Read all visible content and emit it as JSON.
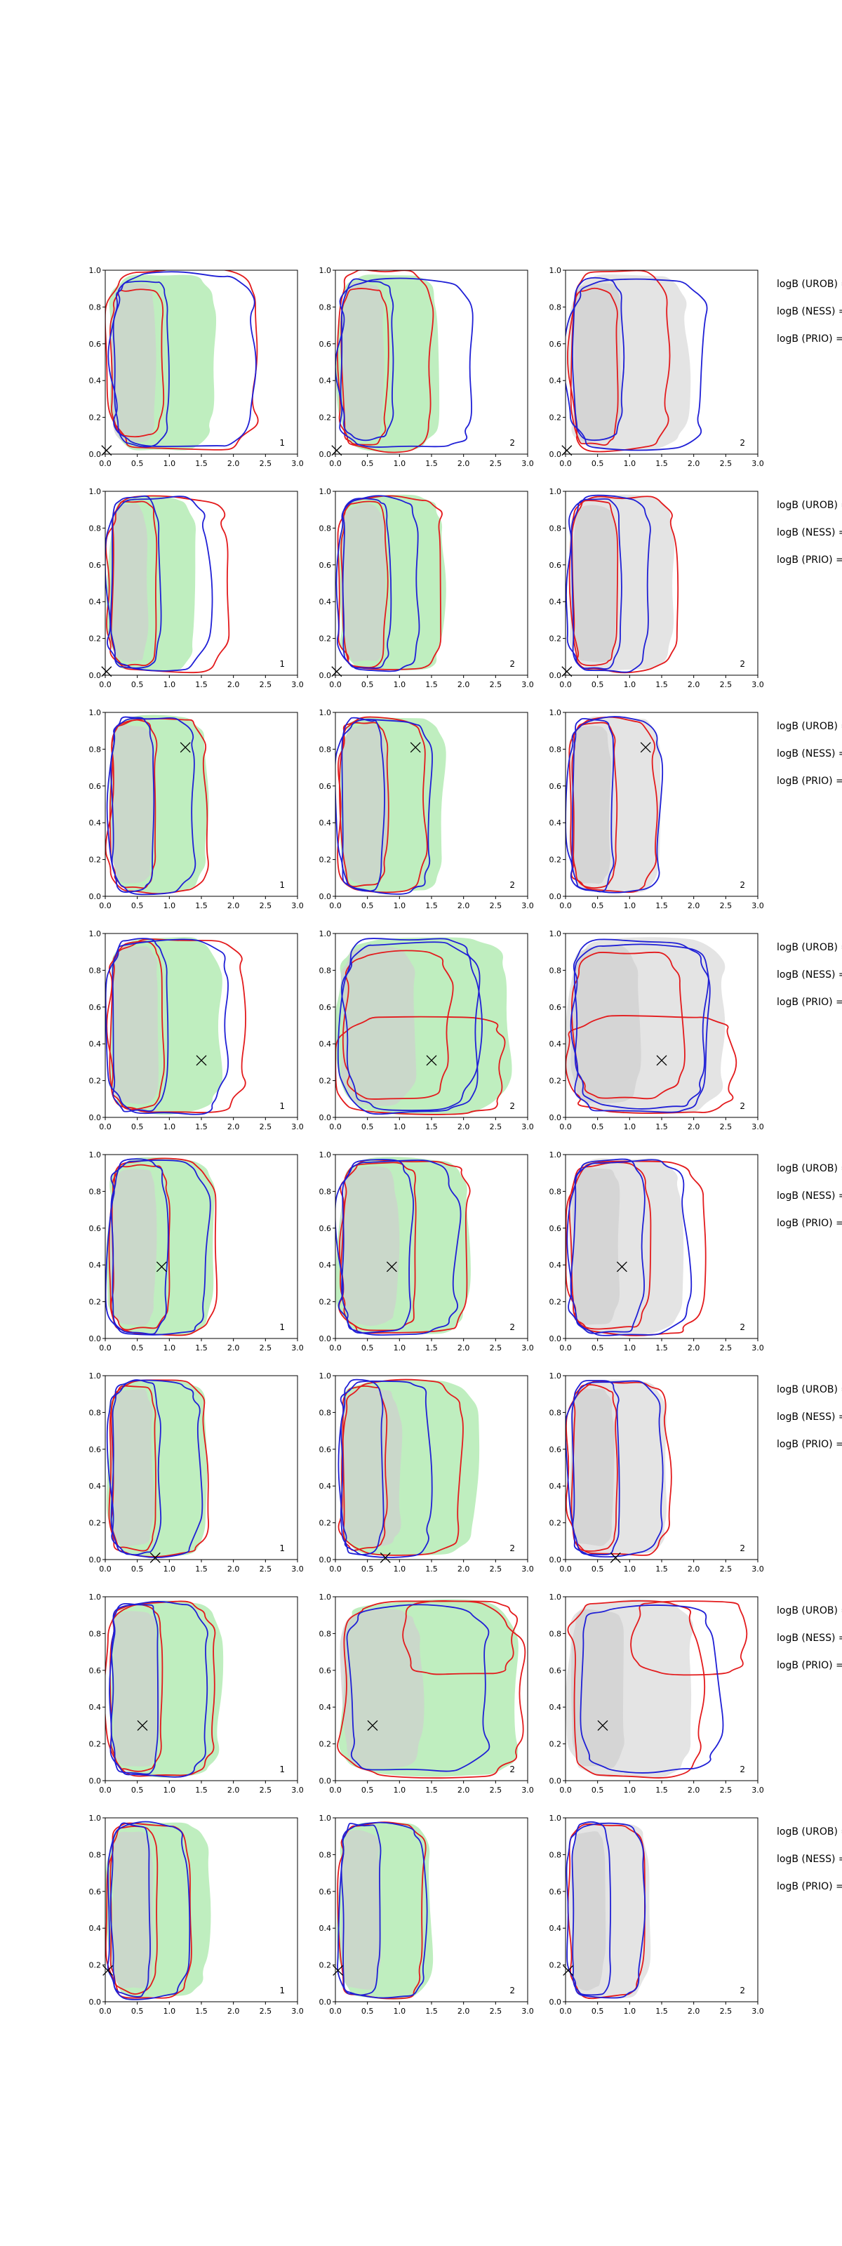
{
  "chart_data": {
    "type": "contour",
    "layout": "8 rows x 3 columns of small-multiple density contour plots",
    "grid": false,
    "shared_axes": {
      "xlim": [
        0,
        3
      ],
      "ylim": [
        0,
        1
      ],
      "x_ticks": [
        "0.0",
        "0.5",
        "1.0",
        "1.5",
        "2.0",
        "2.5",
        "3.0"
      ],
      "y_ticks": [
        "0.0",
        "0.2",
        "0.4",
        "0.6",
        "0.8",
        "1.0"
      ]
    },
    "colors": {
      "green_fill": "#bfeebf",
      "grey_fill": "#e4e4e4",
      "grey_inner": "#cfcfcf",
      "red_line": "#e31a1c",
      "blue_line": "#1f1fd6",
      "marker": "#000000"
    },
    "panel_numbers": [
      "1",
      "2",
      "2"
    ],
    "row_labels": [
      "logB (UROB) =",
      "logB (NESS) =",
      "logB (PRIO) ="
    ],
    "rows": [
      {
        "marker": [
          0.02,
          0.02
        ],
        "panels": [
          {
            "fill": "green",
            "blob": [
              0.05,
              0.02,
              1.7,
              0.98
            ],
            "red": [
              [
                0.1,
                0.1,
                0.9,
                0.9
              ],
              [
                0.05,
                0.02,
                2.4,
                1.0
              ]
            ],
            "blue": [
              [
                0.15,
                0.05,
                1.0,
                0.95
              ],
              [
                0.1,
                0.03,
                2.3,
                0.98
              ]
            ]
          },
          {
            "fill": "green",
            "blob": [
              0.05,
              0.02,
              1.6,
              0.98
            ],
            "red": [
              [
                0.1,
                0.05,
                0.8,
                0.9
              ],
              [
                0.05,
                0.02,
                1.5,
                1.0
              ]
            ],
            "blue": [
              [
                0.1,
                0.08,
                0.9,
                0.95
              ],
              [
                0.05,
                0.03,
                2.2,
                0.95
              ]
            ]
          },
          {
            "fill": "grey",
            "blob": [
              0.05,
              0.02,
              1.9,
              0.98
            ],
            "red": [
              [
                0.1,
                0.05,
                0.8,
                0.9
              ],
              [
                0.05,
                0.02,
                1.6,
                1.0
              ]
            ],
            "blue": [
              [
                0.1,
                0.08,
                0.9,
                0.95
              ],
              [
                0.05,
                0.03,
                2.2,
                0.95
              ]
            ]
          }
        ]
      },
      {
        "marker": [
          0.02,
          0.02
        ],
        "panels": [
          {
            "fill": "green",
            "blob": [
              0.05,
              0.02,
              1.4,
              0.98
            ],
            "red": [
              [
                0.1,
                0.05,
                0.8,
                0.95
              ],
              [
                0.05,
                0.02,
                1.9,
                0.97
              ]
            ],
            "blue": [
              [
                0.1,
                0.03,
                0.85,
                0.97
              ],
              [
                0.05,
                0.02,
                1.6,
                0.97
              ]
            ]
          },
          {
            "fill": "green",
            "blob": [
              0.05,
              0.02,
              1.7,
              0.98
            ],
            "red": [
              [
                0.1,
                0.05,
                0.8,
                0.95
              ],
              [
                0.05,
                0.02,
                1.7,
                0.97
              ]
            ],
            "blue": [
              [
                0.1,
                0.03,
                0.85,
                0.97
              ],
              [
                0.05,
                0.02,
                1.3,
                0.97
              ]
            ]
          },
          {
            "fill": "grey",
            "blob": [
              0.05,
              0.02,
              1.7,
              0.98
            ],
            "red": [
              [
                0.1,
                0.05,
                0.8,
                0.95
              ],
              [
                0.05,
                0.02,
                1.7,
                0.97
              ]
            ],
            "blue": [
              [
                0.1,
                0.03,
                0.85,
                0.97
              ],
              [
                0.05,
                0.02,
                1.3,
                0.97
              ]
            ]
          }
        ]
      },
      {
        "marker": [
          1.25,
          0.81
        ],
        "panels": [
          {
            "fill": "green",
            "blob": [
              0.05,
              0.02,
              1.6,
              0.98
            ],
            "red": [
              [
                0.1,
                0.05,
                0.8,
                0.95
              ],
              [
                0.05,
                0.02,
                1.6,
                0.97
              ]
            ],
            "blue": [
              [
                0.1,
                0.03,
                0.75,
                0.97
              ],
              [
                0.05,
                0.02,
                1.4,
                0.97
              ]
            ]
          },
          {
            "fill": "green",
            "blob": [
              0.05,
              0.02,
              1.7,
              0.98
            ],
            "red": [
              [
                0.1,
                0.05,
                0.8,
                0.95
              ],
              [
                0.05,
                0.02,
                1.4,
                0.97
              ]
            ],
            "blue": [
              [
                0.1,
                0.03,
                0.75,
                0.97
              ],
              [
                0.05,
                0.02,
                1.5,
                0.97
              ]
            ]
          },
          {
            "fill": "grey",
            "blob": [
              0.05,
              0.02,
              1.5,
              0.98
            ],
            "red": [
              [
                0.1,
                0.05,
                0.8,
                0.95
              ],
              [
                0.05,
                0.02,
                1.4,
                0.97
              ]
            ],
            "blue": [
              [
                0.1,
                0.03,
                0.75,
                0.97
              ],
              [
                0.05,
                0.02,
                1.5,
                0.97
              ]
            ]
          }
        ]
      },
      {
        "marker": [
          1.5,
          0.31
        ],
        "panels": [
          {
            "fill": "green",
            "blob": [
              0.05,
              0.02,
              1.8,
              0.98
            ],
            "red": [
              [
                0.1,
                0.05,
                0.9,
                0.95
              ],
              [
                0.05,
                0.02,
                2.2,
                0.97
              ]
            ],
            "blue": [
              [
                0.1,
                0.03,
                0.95,
                0.97
              ],
              [
                0.05,
                0.02,
                1.9,
                0.97
              ]
            ]
          },
          {
            "fill": "green",
            "blob": [
              0.05,
              0.02,
              2.7,
              0.98
            ],
            "red": [
              [
                0.15,
                0.1,
                1.8,
                0.9
              ],
              [
                0.1,
                0.02,
                2.6,
                0.55
              ]
            ],
            "blue": [
              [
                0.15,
                0.05,
                2.2,
                0.95
              ],
              [
                0.1,
                0.02,
                2.2,
                0.97
              ]
            ]
          },
          {
            "fill": "grey",
            "blob": [
              0.05,
              0.02,
              2.5,
              0.98
            ],
            "red": [
              [
                0.15,
                0.1,
                1.8,
                0.9
              ],
              [
                0.1,
                0.02,
                2.6,
                0.55
              ]
            ],
            "blue": [
              [
                0.15,
                0.05,
                2.2,
                0.95
              ],
              [
                0.1,
                0.02,
                2.2,
                0.97
              ]
            ]
          }
        ]
      },
      {
        "marker": [
          0.88,
          0.39
        ],
        "panels": [
          {
            "fill": "green",
            "blob": [
              0.05,
              0.02,
              1.7,
              0.98
            ],
            "red": [
              [
                0.1,
                0.05,
                1.0,
                0.95
              ],
              [
                0.05,
                0.02,
                1.7,
                0.97
              ]
            ],
            "blue": [
              [
                0.1,
                0.03,
                0.95,
                0.97
              ],
              [
                0.05,
                0.02,
                1.6,
                0.97
              ]
            ]
          },
          {
            "fill": "green",
            "blob": [
              0.05,
              0.02,
              2.1,
              0.98
            ],
            "red": [
              [
                0.1,
                0.05,
                1.3,
                0.95
              ],
              [
                0.05,
                0.02,
                2.1,
                0.97
              ]
            ],
            "blue": [
              [
                0.1,
                0.03,
                1.2,
                0.97
              ],
              [
                0.05,
                0.02,
                1.9,
                0.97
              ]
            ]
          },
          {
            "fill": "grey",
            "blob": [
              0.05,
              0.02,
              1.8,
              0.98
            ],
            "red": [
              [
                0.1,
                0.05,
                1.3,
                0.95
              ],
              [
                0.05,
                0.02,
                2.1,
                0.97
              ]
            ],
            "blue": [
              [
                0.1,
                0.03,
                1.2,
                0.97
              ],
              [
                0.05,
                0.02,
                1.9,
                0.97
              ]
            ]
          }
        ]
      },
      {
        "marker": [
          0.78,
          0.01
        ],
        "panels": [
          {
            "fill": "green",
            "blob": [
              0.05,
              0.02,
              1.6,
              0.98
            ],
            "red": [
              [
                0.1,
                0.05,
                0.8,
                0.95
              ],
              [
                0.05,
                0.02,
                1.6,
                0.97
              ]
            ],
            "blue": [
              [
                0.1,
                0.03,
                0.85,
                0.97
              ],
              [
                0.05,
                0.02,
                1.5,
                0.97
              ]
            ]
          },
          {
            "fill": "green",
            "blob": [
              0.05,
              0.02,
              2.2,
              0.98
            ],
            "red": [
              [
                0.1,
                0.05,
                0.8,
                0.95
              ],
              [
                0.05,
                0.02,
                2.0,
                0.97
              ]
            ],
            "blue": [
              [
                0.1,
                0.03,
                0.75,
                0.97
              ],
              [
                0.05,
                0.02,
                1.5,
                0.97
              ]
            ]
          },
          {
            "fill": "grey",
            "blob": [
              0.05,
              0.02,
              1.6,
              0.98
            ],
            "red": [
              [
                0.1,
                0.05,
                0.8,
                0.95
              ],
              [
                0.05,
                0.02,
                1.6,
                0.97
              ]
            ],
            "blue": [
              [
                0.1,
                0.03,
                0.85,
                0.97
              ],
              [
                0.05,
                0.02,
                1.5,
                0.97
              ]
            ]
          }
        ]
      },
      {
        "marker": [
          0.58,
          0.3
        ],
        "panels": [
          {
            "fill": "green",
            "blob": [
              0.05,
              0.02,
              1.8,
              0.98
            ],
            "red": [
              [
                0.1,
                0.05,
                0.9,
                0.95
              ],
              [
                0.05,
                0.02,
                1.7,
                0.97
              ]
            ],
            "blue": [
              [
                0.1,
                0.03,
                0.85,
                0.97
              ],
              [
                0.05,
                0.02,
                1.6,
                0.97
              ]
            ]
          },
          {
            "fill": "green",
            "blob": [
              0.05,
              0.02,
              2.9,
              0.98
            ],
            "red": [
              [
                1.1,
                0.58,
                2.8,
                0.98
              ],
              [
                0.05,
                0.02,
                2.9,
                0.97
              ]
            ],
            "blue": [
              [
                0.15,
                0.05,
                2.4,
                0.95
              ]
            ]
          },
          {
            "fill": "grey",
            "blob": [
              0.05,
              0.02,
              2.0,
              0.98
            ],
            "red": [
              [
                1.1,
                0.58,
                2.8,
                0.98
              ],
              [
                0.05,
                0.02,
                2.1,
                0.97
              ]
            ],
            "blue": [
              [
                0.15,
                0.05,
                2.4,
                0.95
              ]
            ]
          }
        ]
      },
      {
        "marker": [
          0.04,
          0.17
        ],
        "panels": [
          {
            "fill": "green",
            "blob": [
              0.05,
              0.02,
              1.6,
              0.98
            ],
            "red": [
              [
                0.1,
                0.05,
                0.8,
                0.95
              ],
              [
                0.05,
                0.02,
                1.3,
                0.97
              ]
            ],
            "blue": [
              [
                0.1,
                0.03,
                0.7,
                0.97
              ],
              [
                0.05,
                0.02,
                1.3,
                0.97
              ]
            ]
          },
          {
            "fill": "green",
            "blob": [
              0.05,
              0.02,
              1.5,
              0.98
            ],
            "red": [
              [
                0.05,
                0.02,
                1.4,
                0.97
              ]
            ],
            "blue": [
              [
                0.1,
                0.03,
                0.7,
                0.97
              ],
              [
                0.05,
                0.02,
                1.4,
                0.97
              ]
            ]
          },
          {
            "fill": "grey",
            "blob": [
              0.05,
              0.02,
              1.3,
              0.98
            ],
            "red": [
              [
                0.05,
                0.02,
                1.2,
                0.97
              ]
            ],
            "blue": [
              [
                0.1,
                0.03,
                0.7,
                0.97
              ],
              [
                0.05,
                0.02,
                1.2,
                0.97
              ]
            ]
          }
        ]
      }
    ]
  }
}
